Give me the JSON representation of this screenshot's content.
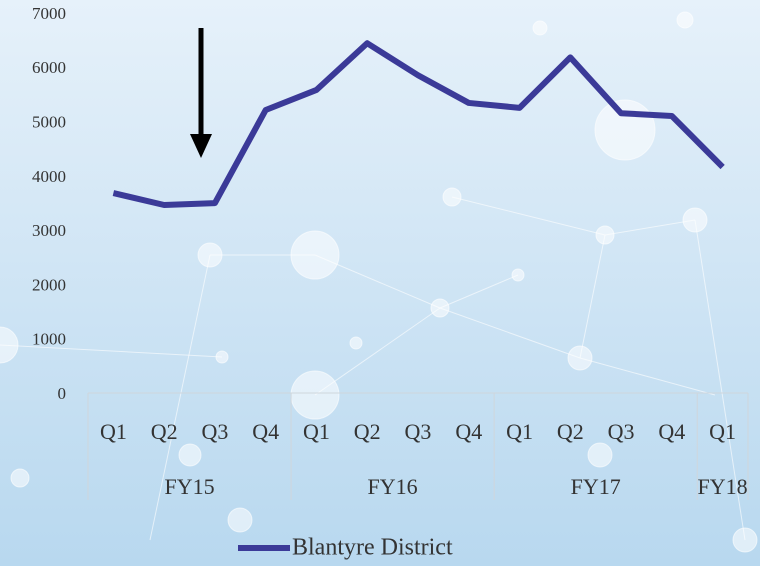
{
  "chart_data": {
    "type": "line",
    "categories": [
      "Q1",
      "Q2",
      "Q3",
      "Q4",
      "Q1",
      "Q2",
      "Q3",
      "Q4",
      "Q1",
      "Q2",
      "Q3",
      "Q4",
      "Q1"
    ],
    "groups": [
      {
        "label": "FY15",
        "span": 4
      },
      {
        "label": "FY16",
        "span": 4
      },
      {
        "label": "FY17",
        "span": 4
      },
      {
        "label": "FY18",
        "span": 1
      }
    ],
    "series": [
      {
        "name": "Blantyre District",
        "color": "#3b3a98",
        "values": [
          3720,
          3500,
          3535,
          5250,
          5620,
          6480,
          5890,
          5380,
          5290,
          6220,
          5190,
          5140,
          4200
        ]
      }
    ],
    "ylim": [
      0,
      7000
    ],
    "yticks": [
      0,
      1000,
      2000,
      3000,
      4000,
      5000,
      6000,
      7000
    ],
    "grid": false
  }
}
